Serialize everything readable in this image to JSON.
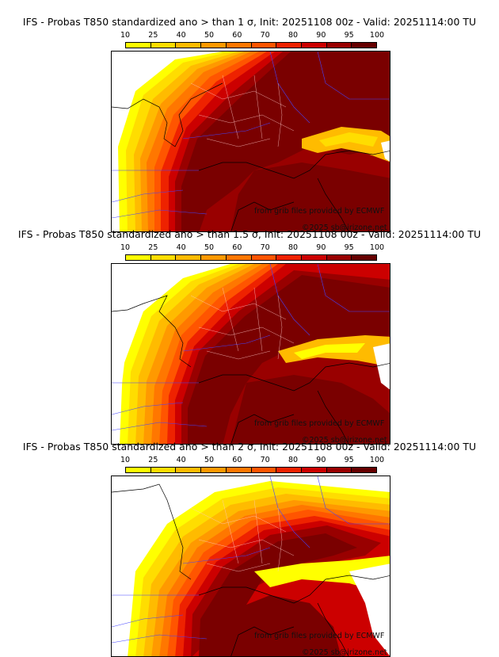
{
  "colorbar": {
    "labels": [
      "10",
      "25",
      "40",
      "50",
      "60",
      "70",
      "80",
      "90",
      "95",
      "100"
    ],
    "colors": [
      "#ffff00",
      "#ffdd00",
      "#ffbb00",
      "#ff9900",
      "#ff7700",
      "#ff5500",
      "#ee2200",
      "#cc0000",
      "#990000",
      "#660000"
    ]
  },
  "panels": [
    {
      "title": "IFS - Probas T850  standardized ano > than 1 σ, Init: 20251108 00z - Valid: 20251114:00 TU",
      "credit": "from grib files provided by ECMWF",
      "copyright": "©2025 sb@irizone.net"
    },
    {
      "title": "IFS - Probas T850  standardized ano > than 1.5 σ, Init: 20251108 00z - Valid: 20251114:00 TU",
      "credit": "from grib files provided by ECMWF",
      "copyright": "©2025 sb@irizone.net"
    },
    {
      "title": "IFS - Probas T850  standardized ano > than 2 σ, Init: 20251108 00z - Valid: 20251114:00 TU",
      "credit": "from grib files provided by ECMWF",
      "copyright": "©2025 sb@irizone.net"
    }
  ],
  "probability_levels": [
    {
      "outer_level": 10
    },
    {
      "outer_level": 10
    },
    {
      "outer_level": 10
    }
  ]
}
